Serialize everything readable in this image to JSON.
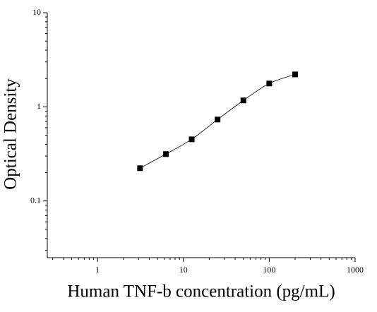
{
  "chart_data": {
    "type": "scatter",
    "x_label": "Human TNF-b concentration (pg/mL)",
    "y_label": "Optical Density",
    "x_log": true,
    "y_log": true,
    "minor_ticks": true,
    "fit_curve": true,
    "xlim": [
      0.26,
      1000
    ],
    "ylim": [
      0.025,
      10
    ],
    "xticks": [
      1,
      10,
      100,
      1000
    ],
    "yticks": [
      0.1,
      1,
      10
    ],
    "series": [
      {
        "color": "#000000",
        "x": [
          3.125,
          6.25,
          12.5,
          25,
          50,
          100,
          200
        ],
        "values": [
          0.223,
          0.315,
          0.452,
          0.733,
          1.17,
          1.77,
          2.21
        ]
      }
    ]
  }
}
